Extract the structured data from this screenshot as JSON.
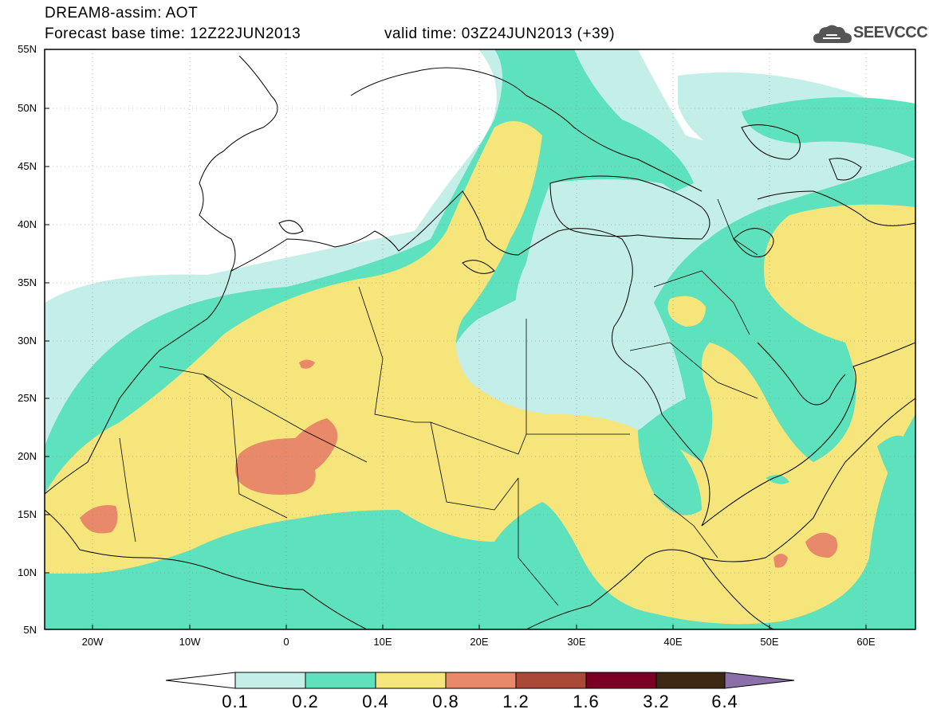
{
  "header": {
    "line1": "DREAM8-assim: AOT",
    "line2": "Forecast base time: 12Z22JUN2013",
    "valid": "valid time: 03Z24JUN2013 (+39)"
  },
  "logo": {
    "text": "SEEVCCC",
    "icon": "cloud-icon"
  },
  "map": {
    "lat_labels": [
      "55N",
      "50N",
      "45N",
      "40N",
      "35N",
      "30N",
      "25N",
      "20N",
      "15N",
      "10N",
      "5N"
    ],
    "lon_labels": [
      "20W",
      "10W",
      "0",
      "10E",
      "20E",
      "30E",
      "40E",
      "50E",
      "60E"
    ],
    "lat_range": [
      5,
      55
    ],
    "lon_range": [
      -25,
      65
    ]
  },
  "legend": {
    "levels": [
      "0.1",
      "0.2",
      "0.4",
      "0.8",
      "1.2",
      "1.6",
      "3.2",
      "6.4"
    ],
    "colors": {
      "c1": "#c4eee8",
      "c2": "#5ee1bd",
      "c3": "#f5e57b",
      "c4": "#e8896a",
      "c5": "#a94a39",
      "c6": "#7a0024",
      "c7": "#3d2814",
      "c8": "#8a6fa8"
    }
  }
}
